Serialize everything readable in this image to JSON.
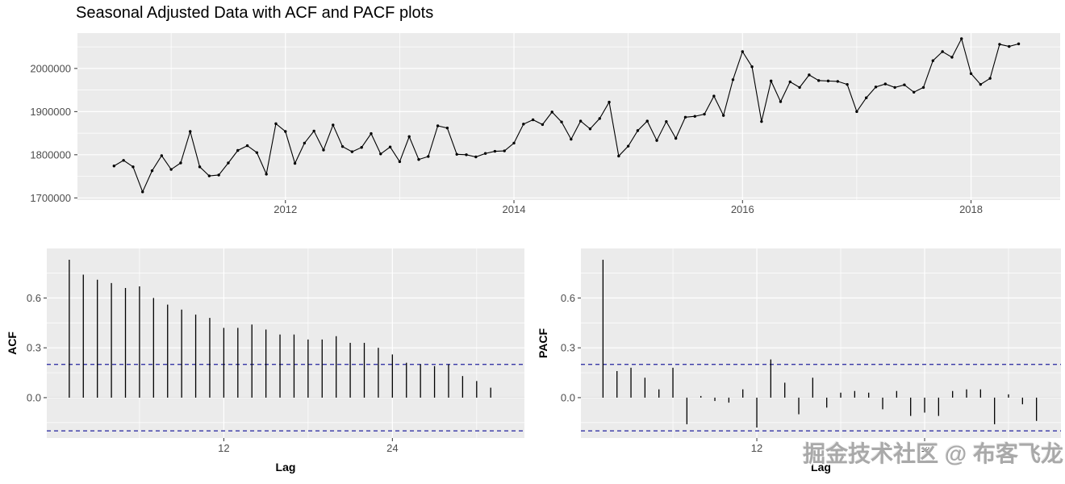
{
  "title": "Seasonal Adjusted Data with ACF and PACF plots",
  "watermark": "掘金技术社区 @ 布客飞龙",
  "colors": {
    "panel_bg": "#ebebeb",
    "grid": "#ffffff",
    "series": "#000000",
    "conf_line": "#22229e",
    "tick_text": "#4d4d4d",
    "title_text": "#000000",
    "watermark_text": "#a9a9a9"
  },
  "chart_data": [
    {
      "type": "line",
      "name": "seasonal-adjusted-series",
      "title": "Seasonal Adjusted Data with ACF and PACF plots",
      "xlabel": "",
      "ylabel": "",
      "x_start": 2010.5,
      "x_step_months": 1,
      "values": [
        1774000,
        1787000,
        1772000,
        1714000,
        1763000,
        1798000,
        1766000,
        1781000,
        1854000,
        1772000,
        1751000,
        1753000,
        1781000,
        1810000,
        1821000,
        1805000,
        1755000,
        1872000,
        1854000,
        1780000,
        1827000,
        1855000,
        1811000,
        1869000,
        1819000,
        1807000,
        1817000,
        1849000,
        1802000,
        1818000,
        1784000,
        1842000,
        1789000,
        1796000,
        1867000,
        1862000,
        1801000,
        1800000,
        1795000,
        1803000,
        1808000,
        1809000,
        1827000,
        1871000,
        1881000,
        1870000,
        1899000,
        1876000,
        1836000,
        1878000,
        1860000,
        1884000,
        1922000,
        1797000,
        1820000,
        1856000,
        1878000,
        1833000,
        1877000,
        1838000,
        1887000,
        1889000,
        1894000,
        1936000,
        1891000,
        1974000,
        2039000,
        2004000,
        1877000,
        1971000,
        1923000,
        1969000,
        1956000,
        1985000,
        1972000,
        1971000,
        1970000,
        1963000,
        1900000,
        1932000,
        1957000,
        1964000,
        1956000,
        1962000,
        1945000,
        1956000,
        2018000,
        2039000,
        2026000,
        2069000,
        1988000,
        1963000,
        1977000,
        2056000,
        2051000,
        2057000
      ],
      "x_ticks": [
        2012,
        2014,
        2016,
        2018
      ],
      "x_tick_labels": [
        "2012",
        "2014",
        "2016",
        "2018"
      ],
      "x_minor_ticks": [
        2011,
        2013,
        2015,
        2017
      ],
      "y_ticks": [
        1700000,
        1800000,
        1900000,
        2000000
      ],
      "y_tick_labels": [
        "1700000",
        "1800000",
        "1900000",
        "2000000"
      ],
      "y_minor_ticks": [
        1750000,
        1850000,
        1950000,
        2050000
      ],
      "xlim": [
        2010.18,
        2018.78
      ],
      "ylim": [
        1695000,
        2082000
      ],
      "grid": true,
      "legend": "none"
    },
    {
      "type": "bar",
      "name": "acf",
      "xlabel": "Lag",
      "ylabel": "ACF",
      "lag_start": 1,
      "values": [
        0.83,
        0.74,
        0.71,
        0.69,
        0.66,
        0.67,
        0.6,
        0.56,
        0.53,
        0.5,
        0.48,
        0.42,
        0.42,
        0.44,
        0.41,
        0.38,
        0.38,
        0.35,
        0.35,
        0.37,
        0.33,
        0.33,
        0.3,
        0.26,
        0.21,
        0.2,
        0.19,
        0.2,
        0.13,
        0.1,
        0.06
      ],
      "conf_level": 0.2,
      "x_ticks": [
        12,
        24
      ],
      "x_tick_labels": [
        "12",
        "24"
      ],
      "x_minor_ticks": [
        6,
        18,
        30
      ],
      "y_ticks": [
        0.0,
        0.3,
        0.6
      ],
      "y_tick_labels": [
        "0.0",
        "0.3",
        "0.6"
      ],
      "y_minor_ticks": [
        -0.15,
        0.15,
        0.45,
        0.75
      ],
      "xlim": [
        -0.6,
        33.4
      ],
      "ylim": [
        -0.243,
        0.898
      ],
      "grid": true,
      "legend": "none"
    },
    {
      "type": "bar",
      "name": "pacf",
      "xlabel": "Lag",
      "ylabel": "PACF",
      "lag_start": 1,
      "values": [
        0.83,
        0.16,
        0.18,
        0.12,
        0.05,
        0.18,
        -0.16,
        0.01,
        -0.02,
        -0.03,
        0.05,
        -0.18,
        0.23,
        0.09,
        -0.1,
        0.12,
        -0.06,
        0.03,
        0.04,
        0.03,
        -0.07,
        0.04,
        -0.11,
        -0.09,
        -0.11,
        0.04,
        0.05,
        0.05,
        -0.16,
        0.02,
        -0.04,
        -0.14
      ],
      "conf_level": 0.2,
      "x_ticks": [
        12,
        24
      ],
      "x_tick_labels": [
        "12",
        "24"
      ],
      "x_minor_ticks": [
        6,
        18,
        30
      ],
      "y_ticks": [
        0.0,
        0.3,
        0.6
      ],
      "y_tick_labels": [
        "0.0",
        "0.3",
        "0.6"
      ],
      "y_minor_ticks": [
        -0.15,
        0.15,
        0.45,
        0.75
      ],
      "xlim": [
        -0.58,
        33.75
      ],
      "ylim": [
        -0.243,
        0.898
      ],
      "grid": true,
      "legend": "none"
    }
  ]
}
